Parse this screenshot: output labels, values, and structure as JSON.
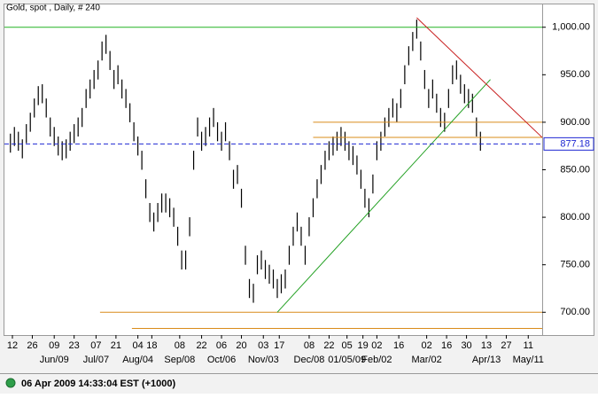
{
  "chart_data": {
    "type": "ohlc",
    "title": "Gold, spot , Daily, # 240",
    "xlim": [
      -3,
      267
    ],
    "ylim": [
      676,
      1024
    ],
    "yticks": [
      {
        "value": 1000,
        "label": "1,000.00"
      },
      {
        "value": 950,
        "label": "950.00"
      },
      {
        "value": 900,
        "label": "900.00"
      },
      {
        "value": 850,
        "label": "850.00"
      },
      {
        "value": 800,
        "label": "800.00"
      },
      {
        "value": 750,
        "label": "750.00"
      },
      {
        "value": 700,
        "label": "700.00"
      }
    ],
    "xticks": [
      {
        "value": 1,
        "label": "12"
      },
      {
        "value": 11,
        "label": "26"
      },
      {
        "value": 22,
        "label": "09"
      },
      {
        "value": 32,
        "label": "23"
      },
      {
        "value": 43,
        "label": "07"
      },
      {
        "value": 53,
        "label": "21"
      },
      {
        "value": 64,
        "label": "04"
      },
      {
        "value": 71,
        "label": "18"
      },
      {
        "value": 85,
        "label": "08"
      },
      {
        "value": 96,
        "label": "22"
      },
      {
        "value": 106,
        "label": "06"
      },
      {
        "value": 116,
        "label": "20"
      },
      {
        "value": 127,
        "label": "03"
      },
      {
        "value": 135,
        "label": "17"
      },
      {
        "value": 150,
        "label": "08"
      },
      {
        "value": 160,
        "label": "22"
      },
      {
        "value": 169,
        "label": "05"
      },
      {
        "value": 177,
        "label": "19"
      },
      {
        "value": 184,
        "label": "02"
      },
      {
        "value": 195,
        "label": "16"
      },
      {
        "value": 209,
        "label": "02"
      },
      {
        "value": 219,
        "label": "16"
      },
      {
        "value": 229,
        "label": "30"
      },
      {
        "value": 239,
        "label": "13"
      },
      {
        "value": 249,
        "label": "27"
      },
      {
        "value": 260,
        "label": "11"
      }
    ],
    "xticks_period": [
      {
        "value": 22,
        "label": "Jun/09"
      },
      {
        "value": 43,
        "label": "Jul/07"
      },
      {
        "value": 64,
        "label": "Aug/04"
      },
      {
        "value": 85,
        "label": "Sep/08"
      },
      {
        "value": 106,
        "label": "Oct/06"
      },
      {
        "value": 127,
        "label": "Nov/03"
      },
      {
        "value": 150,
        "label": "Dec/08"
      },
      {
        "value": 169,
        "label": "01/05/09"
      },
      {
        "value": 184,
        "label": "Feb/02"
      },
      {
        "value": 209,
        "label": "Mar/02"
      },
      {
        "value": 239,
        "label": "Apr/13"
      },
      {
        "value": 260,
        "label": "May/11"
      }
    ],
    "color": "#000000",
    "x": [
      0,
      2,
      4,
      6,
      8,
      10,
      12,
      14,
      16,
      18,
      20,
      22,
      24,
      26,
      28,
      30,
      32,
      34,
      36,
      38,
      40,
      42,
      44,
      46,
      48,
      50,
      52,
      54,
      56,
      58,
      60,
      62,
      64,
      66,
      68,
      70,
      72,
      74,
      76,
      78,
      80,
      82,
      84,
      86,
      88,
      90,
      92,
      94,
      96,
      98,
      100,
      102,
      104,
      106,
      108,
      110,
      112,
      114,
      116,
      118,
      120,
      122,
      124,
      126,
      128,
      130,
      132,
      134,
      136,
      138,
      140,
      142,
      144,
      146,
      148,
      150,
      152,
      154,
      156,
      158,
      160,
      162,
      164,
      166,
      168,
      170,
      172,
      174,
      176,
      178,
      180,
      182,
      184,
      186,
      188,
      190,
      192,
      194,
      196,
      198,
      200,
      202,
      204,
      206,
      208,
      210,
      212,
      214,
      216,
      218,
      220,
      222,
      224,
      226,
      228,
      230,
      232,
      234,
      236
    ],
    "high": [
      888,
      895,
      890,
      882,
      898,
      910,
      925,
      938,
      940,
      925,
      905,
      895,
      885,
      880,
      882,
      890,
      898,
      905,
      915,
      935,
      945,
      955,
      965,
      985,
      992,
      975,
      955,
      960,
      945,
      935,
      920,
      900,
      885,
      870,
      840,
      815,
      805,
      815,
      825,
      825,
      820,
      810,
      790,
      765,
      765,
      800,
      870,
      905,
      890,
      895,
      905,
      915,
      900,
      890,
      900,
      880,
      850,
      855,
      830,
      770,
      735,
      730,
      760,
      765,
      755,
      750,
      745,
      735,
      740,
      745,
      770,
      790,
      805,
      790,
      770,
      800,
      820,
      840,
      855,
      870,
      880,
      885,
      890,
      895,
      890,
      880,
      875,
      865,
      850,
      830,
      820,
      845,
      880,
      890,
      905,
      915,
      925,
      920,
      935,
      960,
      980,
      995,
      1008,
      985,
      955,
      935,
      945,
      930,
      915,
      910,
      935,
      960,
      965,
      950,
      940,
      935,
      930,
      905,
      890
    ],
    "low": [
      868,
      875,
      870,
      862,
      878,
      890,
      905,
      918,
      920,
      905,
      885,
      875,
      865,
      860,
      862,
      870,
      878,
      885,
      895,
      915,
      925,
      935,
      945,
      965,
      972,
      955,
      935,
      940,
      925,
      915,
      900,
      880,
      865,
      850,
      820,
      795,
      785,
      795,
      805,
      805,
      800,
      790,
      770,
      745,
      745,
      780,
      850,
      885,
      870,
      875,
      885,
      895,
      880,
      870,
      880,
      860,
      830,
      835,
      810,
      750,
      715,
      710,
      740,
      745,
      735,
      730,
      725,
      715,
      720,
      725,
      750,
      770,
      785,
      770,
      750,
      780,
      800,
      820,
      835,
      850,
      860,
      865,
      870,
      875,
      870,
      860,
      855,
      845,
      830,
      810,
      800,
      825,
      860,
      870,
      885,
      895,
      905,
      900,
      915,
      940,
      960,
      975,
      988,
      965,
      935,
      915,
      925,
      910,
      895,
      890,
      915,
      940,
      945,
      930,
      920,
      915,
      910,
      885,
      870
    ],
    "lines": [
      {
        "x": [
          -3,
          267
        ],
        "y": [
          1000,
          1000
        ],
        "color": "#22b422"
      },
      {
        "x": [
          152,
          267
        ],
        "y": [
          900,
          900
        ],
        "color": "#d98c1a"
      },
      {
        "x": [
          152,
          267
        ],
        "y": [
          884,
          884
        ],
        "color": "#d98c1a"
      },
      {
        "x": [
          45,
          267
        ],
        "y": [
          700,
          700
        ],
        "color": "#d98c1a"
      },
      {
        "x": [
          61,
          267
        ],
        "y": [
          683,
          683
        ],
        "color": "#d98c1a"
      },
      {
        "x": [
          134,
          241
        ],
        "y": [
          700,
          945
        ],
        "color": "#22a022"
      },
      {
        "x": [
          204,
          267
        ],
        "y": [
          1010,
          884
        ],
        "color": "#c81e1e"
      }
    ],
    "last": {
      "value": 877.18,
      "label": "877.18",
      "color": "#1e28d2"
    }
  },
  "footer": {
    "timestamp": "06 Apr 2009 14:33:04 EST (+1000)"
  }
}
